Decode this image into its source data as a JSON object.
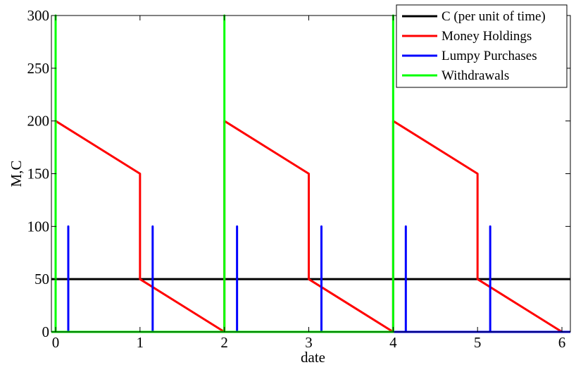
{
  "chart_data": {
    "type": "line",
    "title": "",
    "xlabel": "date",
    "ylabel": "M,C",
    "xlim": [
      -0.05,
      6.1
    ],
    "ylim": [
      0,
      300
    ],
    "xticks": [
      0,
      1,
      2,
      3,
      4,
      5,
      6
    ],
    "yticks": [
      0,
      50,
      100,
      150,
      200,
      250,
      300
    ],
    "grid": false,
    "legend_position": "top-right",
    "series": [
      {
        "name": "C (per unit of time)",
        "color": "#000000",
        "points": [
          [
            -0.05,
            50
          ],
          [
            6.1,
            50
          ]
        ]
      },
      {
        "name": "Money Holdings",
        "color": "#ff0000",
        "points": [
          [
            0,
            0
          ],
          [
            0,
            200
          ],
          [
            1,
            150
          ],
          [
            1,
            50
          ],
          [
            2,
            0
          ],
          [
            2,
            200
          ],
          [
            3,
            150
          ],
          [
            3,
            50
          ],
          [
            4,
            0
          ],
          [
            4,
            200
          ],
          [
            5,
            150
          ],
          [
            5,
            50
          ],
          [
            6,
            0
          ]
        ]
      },
      {
        "name": "Lumpy Purchases",
        "color": "#0000ff",
        "points": [
          [
            -0.05,
            0
          ],
          [
            0.15,
            0
          ],
          [
            0.15,
            100
          ],
          [
            0.15,
            0
          ],
          [
            1.15,
            0
          ],
          [
            1.15,
            100
          ],
          [
            1.15,
            0
          ],
          [
            2.15,
            0
          ],
          [
            2.15,
            100
          ],
          [
            2.15,
            0
          ],
          [
            3.15,
            0
          ],
          [
            3.15,
            100
          ],
          [
            3.15,
            0
          ],
          [
            4.15,
            0
          ],
          [
            4.15,
            100
          ],
          [
            4.15,
            0
          ],
          [
            5.15,
            0
          ],
          [
            5.15,
            100
          ],
          [
            5.15,
            0
          ],
          [
            6.1,
            0
          ]
        ]
      },
      {
        "name": "Withdrawals",
        "color": "#00ff00",
        "points": [
          [
            -0.05,
            0
          ],
          [
            0,
            0
          ],
          [
            0,
            300
          ],
          [
            0,
            0
          ],
          [
            2,
            0
          ],
          [
            2,
            300
          ],
          [
            2,
            0
          ],
          [
            4,
            0
          ],
          [
            4,
            300
          ],
          [
            4,
            0
          ]
        ]
      }
    ]
  }
}
